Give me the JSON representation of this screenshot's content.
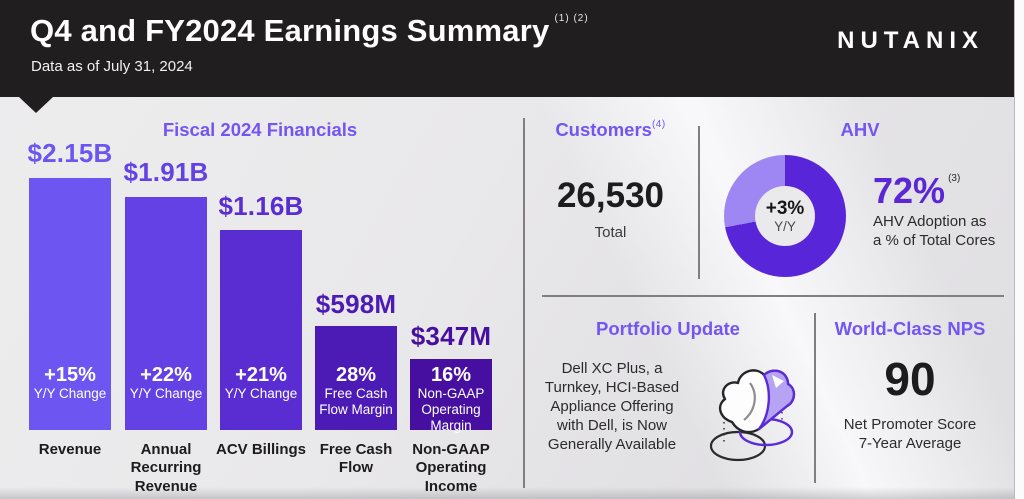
{
  "colors": {
    "accent_purple": "#7555F2",
    "dark_purple_stat": "#5B27D6",
    "header_bg": "#201E1F",
    "text_dark": "#1C1B1D",
    "bar_colors": [
      "#6C55F1",
      "#6341E4",
      "#5A2DD2",
      "#4C1BB5",
      "#460FA0"
    ]
  },
  "header": {
    "title": "Q4 and FY2024 Earnings Summary",
    "title_superscript": "(1) (2)",
    "subtitle": "Data as of July 31, 2024",
    "logo": "NUTANIX"
  },
  "financials": {
    "title": "Fiscal 2024 Financials",
    "bars": [
      {
        "value": "$2.15B",
        "stat": "+15%",
        "stat_desc": "Y/Y Change",
        "metric": "Revenue",
        "color": "#6C55F1"
      },
      {
        "value": "$1.91B",
        "stat": "+22%",
        "stat_desc": "Y/Y Change",
        "metric": "Annual Recurring Revenue",
        "color": "#6341E4"
      },
      {
        "value": "$1.16B",
        "stat": "+21%",
        "stat_desc": "Y/Y Change",
        "metric": "ACV Billings",
        "color": "#5A2DD2"
      },
      {
        "value": "$598M",
        "stat": "28%",
        "stat_desc": "Free Cash Flow Margin",
        "metric": "Free Cash Flow",
        "color": "#4C1BB5"
      },
      {
        "value": "$347M",
        "stat": "16%",
        "stat_desc": "Non-GAAP Operating Margin",
        "metric": "Non-GAAP Operating Income",
        "color": "#460FA0"
      }
    ]
  },
  "customers": {
    "title": "Customers",
    "superscript": "(4)",
    "value": "26,530",
    "label": "Total"
  },
  "ahv": {
    "title": "AHV",
    "percent": "72%",
    "superscript": "(3)",
    "description_lines": [
      "AHV Adoption as",
      "a % of Total Cores"
    ],
    "donut": {
      "center_value": "+3%",
      "center_label": "Y/Y",
      "adoption_pct": 72,
      "dark_color": "#5826D8",
      "light_color": "#9E87F2"
    }
  },
  "portfolio": {
    "title": "Portfolio Update",
    "lines": [
      "Dell XC Plus, a",
      "Turnkey, HCI-Based",
      "Appliance Offering",
      "with Dell, is Now",
      "Generally Available"
    ]
  },
  "nps": {
    "title": "World-Class NPS",
    "value": "90",
    "label_lines": [
      "Net Promoter Score",
      "7-Year Average"
    ]
  },
  "chart_data": [
    {
      "type": "bar",
      "title": "Fiscal 2024 Financials",
      "categories": [
        "Revenue",
        "Annual Recurring Revenue",
        "ACV Billings",
        "Free Cash Flow",
        "Non-GAAP Operating Income"
      ],
      "values_usd_millions": [
        2150,
        1910,
        1160,
        598,
        347
      ],
      "value_labels": [
        "$2.15B",
        "$1.91B",
        "$1.16B",
        "$598M",
        "$347M"
      ],
      "bar_annotations": [
        "+15% Y/Y Change",
        "+22% Y/Y Change",
        "+21% Y/Y Change",
        "28% Free Cash Flow Margin",
        "16% Non-GAAP Operating Margin"
      ],
      "bar_colors": [
        "#6C55F1",
        "#6341E4",
        "#5A2DD2",
        "#4C1BB5",
        "#460FA0"
      ],
      "xlabel": "",
      "ylabel": "",
      "grid": false,
      "legend": false,
      "note": "stylized infographic bars; heights not strictly proportional to values"
    },
    {
      "type": "pie",
      "title": "AHV",
      "slices": [
        {
          "label": "AHV Adoption as a % of Total Cores",
          "value": 72,
          "color": "#5826D8"
        },
        {
          "label": "remainder",
          "value": 28,
          "color": "#9E87F2"
        }
      ],
      "center_label": "+3% Y/Y",
      "donut": true
    }
  ]
}
